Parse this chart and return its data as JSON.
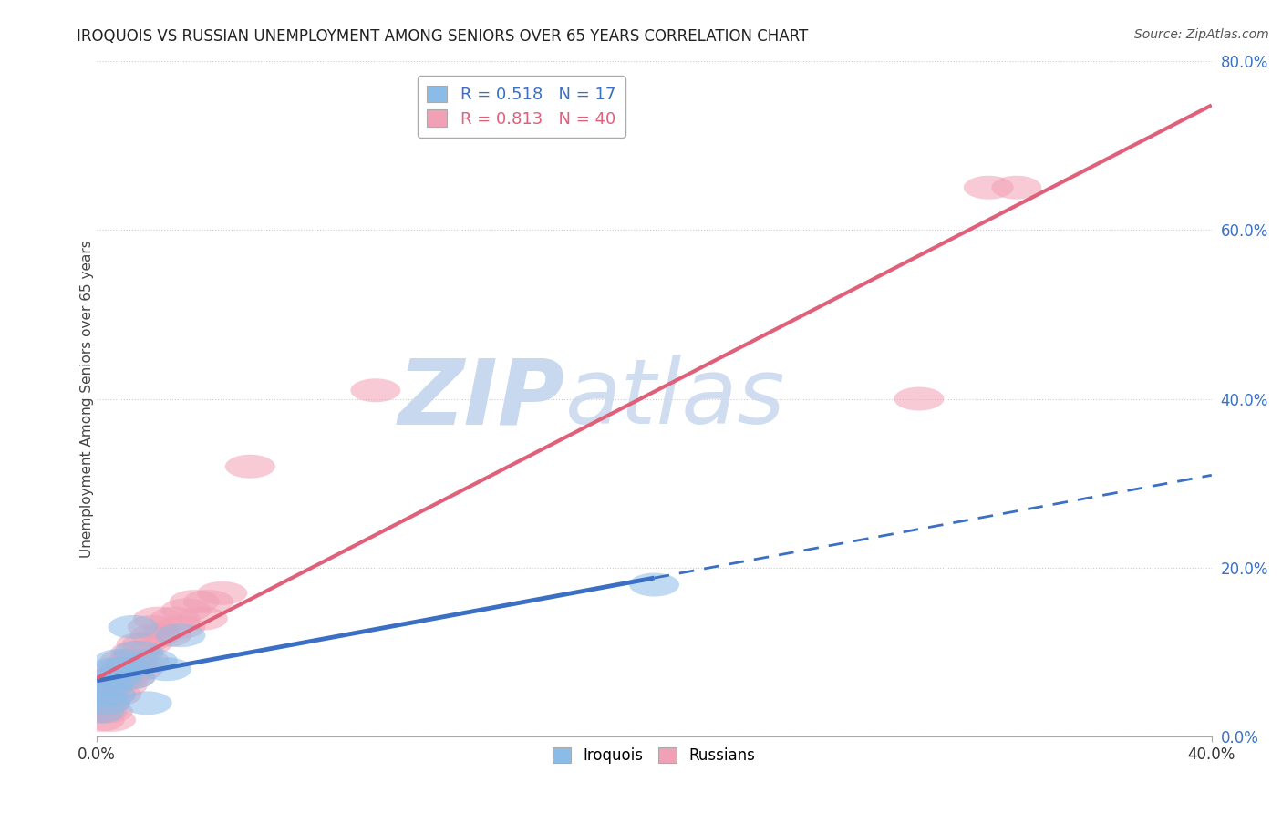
{
  "title": "IROQUOIS VS RUSSIAN UNEMPLOYMENT AMONG SENIORS OVER 65 YEARS CORRELATION CHART",
  "source": "Source: ZipAtlas.com",
  "ylabel": "Unemployment Among Seniors over 65 years",
  "xlim": [
    0.0,
    0.4
  ],
  "ylim": [
    0.0,
    0.8
  ],
  "xticks": [
    0.0,
    0.4
  ],
  "yticks": [
    0.0,
    0.2,
    0.4,
    0.6,
    0.8
  ],
  "iroquois_R": 0.518,
  "iroquois_N": 17,
  "russian_R": 0.813,
  "russian_N": 40,
  "iroquois_color": "#8BBCE8",
  "russian_color": "#F2A0B5",
  "iroquois_line_color": "#3A6FC4",
  "russian_line_color": "#E0607A",
  "iroquois_x": [
    0.001,
    0.002,
    0.003,
    0.004,
    0.005,
    0.006,
    0.007,
    0.008,
    0.01,
    0.012,
    0.013,
    0.015,
    0.018,
    0.02,
    0.025,
    0.03,
    0.2
  ],
  "iroquois_y": [
    0.03,
    0.05,
    0.04,
    0.06,
    0.05,
    0.08,
    0.07,
    0.09,
    0.08,
    0.07,
    0.13,
    0.1,
    0.04,
    0.09,
    0.08,
    0.12,
    0.18
  ],
  "russian_x": [
    0.001,
    0.001,
    0.002,
    0.002,
    0.003,
    0.003,
    0.004,
    0.005,
    0.005,
    0.006,
    0.007,
    0.007,
    0.008,
    0.009,
    0.01,
    0.01,
    0.011,
    0.012,
    0.013,
    0.014,
    0.015,
    0.016,
    0.017,
    0.018,
    0.02,
    0.021,
    0.022,
    0.025,
    0.028,
    0.03,
    0.032,
    0.035,
    0.038,
    0.04,
    0.045,
    0.055,
    0.1,
    0.295,
    0.32,
    0.33
  ],
  "russian_y": [
    0.02,
    0.04,
    0.03,
    0.05,
    0.04,
    0.06,
    0.03,
    0.05,
    0.02,
    0.07,
    0.05,
    0.07,
    0.08,
    0.06,
    0.07,
    0.09,
    0.08,
    0.07,
    0.09,
    0.1,
    0.08,
    0.11,
    0.09,
    0.11,
    0.13,
    0.12,
    0.14,
    0.12,
    0.14,
    0.13,
    0.15,
    0.16,
    0.14,
    0.16,
    0.17,
    0.32,
    0.41,
    0.4,
    0.65,
    0.65
  ],
  "background_color": "#FFFFFF",
  "watermark_zip": "ZIP",
  "watermark_atlas": "atlas",
  "watermark_color_zip": "#C8D8EE",
  "watermark_color_atlas": "#C8D8EE"
}
